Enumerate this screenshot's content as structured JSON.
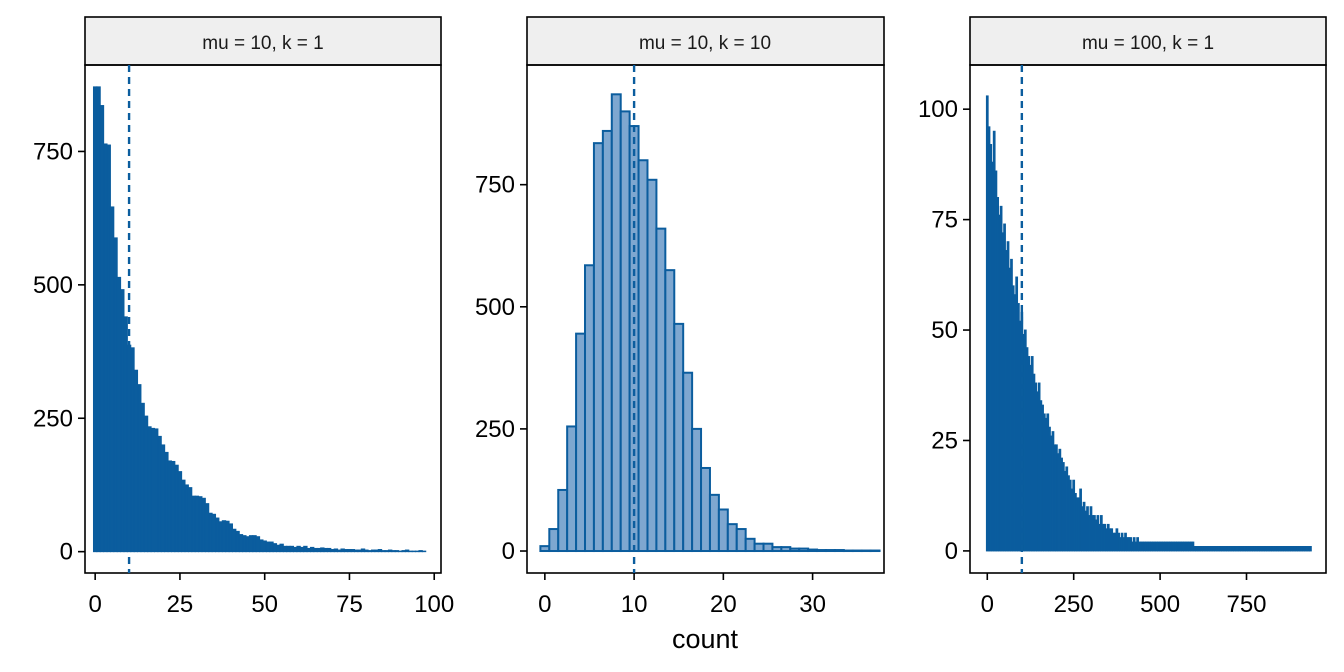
{
  "figure": {
    "xlabel": "count"
  },
  "style": {
    "bar_fill_dense": "#0b5d9e",
    "bar_fill_light": "#7ea7d0",
    "bar_stroke": "#0b5d9e",
    "mean_line": "#0b5d9e",
    "strip_bg": "#efefef"
  },
  "chart_data": [
    {
      "type": "bar",
      "title": "mu = 10, k = 1",
      "binwidth": 1,
      "xlim": [
        -3,
        102
      ],
      "ylim": [
        -40,
        912
      ],
      "xticks": [
        0,
        25,
        50,
        75,
        100
      ],
      "yticks": [
        0,
        250,
        500,
        750
      ],
      "mean_line_x": 10,
      "x_start": 0,
      "values": [
        871,
        871,
        836,
        764,
        762,
        646,
        588,
        514,
        491,
        440,
        387,
        382,
        340,
        313,
        278,
        254,
        234,
        231,
        230,
        216,
        200,
        186,
        170,
        169,
        162,
        150,
        134,
        125,
        120,
        104,
        104,
        103,
        100,
        90,
        72,
        70,
        63,
        56,
        58,
        57,
        52,
        42,
        38,
        32,
        30,
        28,
        30,
        30,
        28,
        22,
        20,
        18,
        18,
        15,
        12,
        14,
        10,
        10,
        10,
        8,
        10,
        8,
        10,
        6,
        8,
        6,
        6,
        7,
        6,
        6,
        4,
        5,
        3,
        5,
        4,
        4,
        4,
        3,
        3,
        5,
        3,
        2,
        3,
        3,
        4,
        2,
        2,
        3,
        2,
        2,
        1,
        2,
        3,
        1,
        1,
        1,
        2,
        1
      ]
    },
    {
      "type": "bar",
      "title": "mu = 10, k = 10",
      "binwidth": 1,
      "xlim": [
        -2,
        38
      ],
      "ylim": [
        -45,
        995
      ],
      "xticks": [
        0,
        10,
        20,
        30
      ],
      "yticks": [
        0,
        250,
        500,
        750
      ],
      "mean_line_x": 10,
      "x_start": 0,
      "values": [
        10,
        45,
        125,
        255,
        445,
        585,
        835,
        860,
        935,
        900,
        870,
        800,
        760,
        660,
        575,
        465,
        365,
        250,
        170,
        115,
        85,
        55,
        45,
        25,
        15,
        15,
        8,
        8,
        5,
        5,
        3,
        2,
        2,
        2,
        1,
        1,
        1,
        1
      ]
    },
    {
      "type": "bar",
      "title": "mu = 100, k = 1",
      "binwidth": 5,
      "xlim": [
        -50,
        980
      ],
      "ylim": [
        -5,
        110
      ],
      "xticks": [
        0,
        250,
        500,
        750
      ],
      "yticks": [
        0,
        25,
        50,
        75,
        100
      ],
      "mean_line_x": 100,
      "x_start": 0,
      "values": [
        103,
        96,
        92,
        88,
        95,
        86,
        80,
        76,
        78,
        72,
        74,
        68,
        70,
        64,
        66,
        60,
        58,
        62,
        56,
        52,
        54,
        49,
        50,
        46,
        44,
        42,
        44,
        40,
        38,
        36,
        38,
        34,
        33,
        31,
        30,
        31,
        28,
        26,
        27,
        24,
        24,
        22,
        23,
        21,
        20,
        18,
        19,
        17,
        16,
        14,
        16,
        13,
        12,
        12,
        14,
        10,
        11,
        9,
        10,
        8,
        10,
        8,
        8,
        7,
        8,
        6,
        8,
        6,
        6,
        5,
        6,
        5,
        5,
        4,
        4,
        5,
        4,
        3,
        4,
        3,
        4,
        3,
        3,
        3,
        2,
        3,
        2,
        3,
        2,
        2,
        2,
        2,
        2,
        2,
        2,
        2,
        2,
        2,
        2,
        2,
        2,
        2,
        2,
        2,
        2,
        2,
        2,
        2,
        2,
        2,
        2,
        2,
        2,
        2,
        2,
        2,
        2,
        2,
        2,
        2,
        1,
        1,
        1,
        1,
        1,
        1,
        1,
        1,
        1,
        1,
        1,
        1,
        1,
        1,
        1,
        1,
        1,
        1,
        1,
        1,
        1,
        1,
        1,
        1,
        1,
        1,
        1,
        1,
        1,
        1,
        1,
        1,
        1,
        1,
        1,
        1,
        1,
        1,
        1,
        1,
        1,
        1,
        1,
        1,
        1,
        1,
        1,
        1,
        1,
        1,
        1,
        1,
        1,
        1,
        1,
        1,
        1,
        1,
        1,
        1,
        1,
        1,
        1,
        1,
        1,
        1,
        1,
        1
      ]
    }
  ]
}
